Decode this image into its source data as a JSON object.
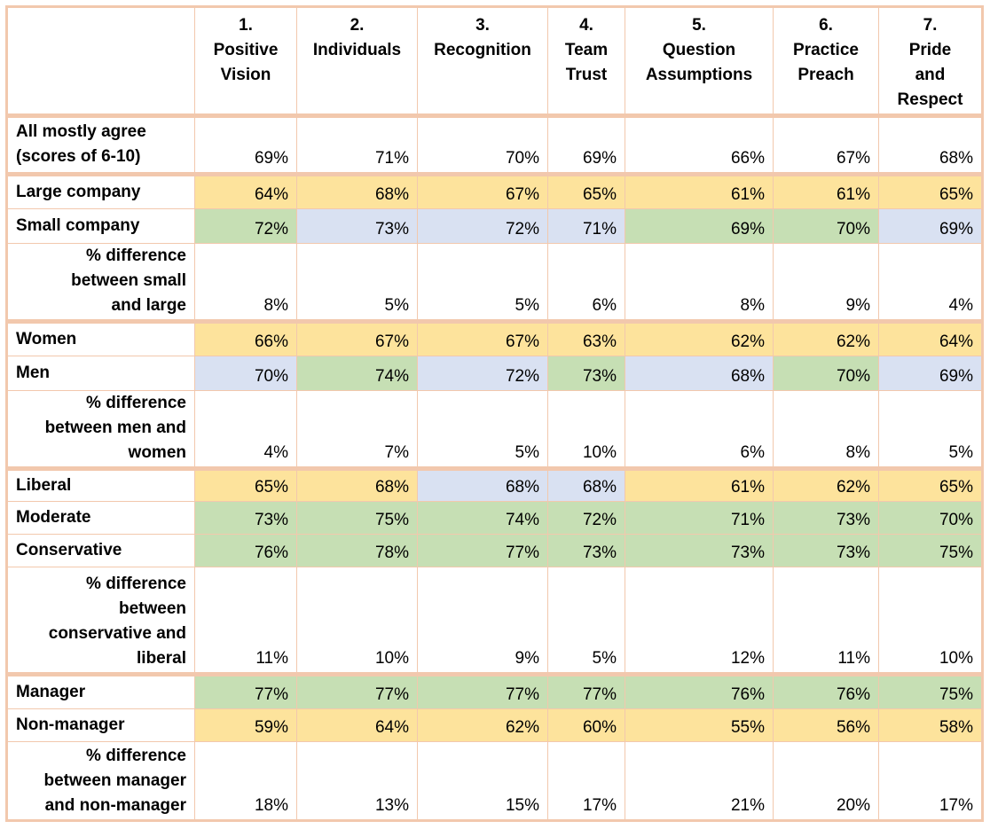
{
  "colors": {
    "yellow": "#fde39c",
    "green": "#c6dfb4",
    "blue": "#d9e1f2",
    "border": "#f2c8ad"
  },
  "header": [
    {
      "num": "1.",
      "name": [
        "Positive",
        "Vision"
      ]
    },
    {
      "num": "2.",
      "name": [
        "Individuals"
      ]
    },
    {
      "num": "3.",
      "name": [
        "Recognition"
      ]
    },
    {
      "num": "4.",
      "name": [
        "Team",
        "Trust"
      ]
    },
    {
      "num": "5.",
      "name": [
        "Question",
        "Assumptions"
      ]
    },
    {
      "num": "6.",
      "name": [
        "Practice",
        "Preach"
      ]
    },
    {
      "num": "7.",
      "name": [
        "Pride",
        "and",
        "Respect"
      ]
    }
  ],
  "rows": [
    {
      "label": [
        "All mostly agree",
        "(scores of 6-10)"
      ],
      "kind": "label",
      "group_end": true,
      "values": [
        "69%",
        "71%",
        "70%",
        "69%",
        "66%",
        "67%",
        "68%"
      ],
      "colors": [
        "white",
        "white",
        "white",
        "white",
        "white",
        "white",
        "white"
      ]
    },
    {
      "label": [
        "Large company"
      ],
      "kind": "label",
      "values": [
        "64%",
        "68%",
        "67%",
        "65%",
        "61%",
        "61%",
        "65%"
      ],
      "colors": [
        "yellow",
        "yellow",
        "yellow",
        "yellow",
        "yellow",
        "yellow",
        "yellow"
      ]
    },
    {
      "label": [
        "Small company"
      ],
      "kind": "label",
      "values": [
        "72%",
        "73%",
        "72%",
        "71%",
        "69%",
        "70%",
        "69%"
      ],
      "colors": [
        "green",
        "blue",
        "blue",
        "blue",
        "green",
        "green",
        "blue"
      ]
    },
    {
      "label": [
        "% difference",
        "between small",
        "and large"
      ],
      "kind": "diff",
      "group_end": true,
      "values": [
        "8%",
        "5%",
        "5%",
        "6%",
        "8%",
        "9%",
        "4%"
      ],
      "colors": [
        "white",
        "white",
        "white",
        "white",
        "white",
        "white",
        "white"
      ]
    },
    {
      "label": [
        "Women"
      ],
      "kind": "label",
      "values": [
        "66%",
        "67%",
        "67%",
        "63%",
        "62%",
        "62%",
        "64%"
      ],
      "colors": [
        "yellow",
        "yellow",
        "yellow",
        "yellow",
        "yellow",
        "yellow",
        "yellow"
      ]
    },
    {
      "label": [
        "Men"
      ],
      "kind": "label",
      "values": [
        "70%",
        "74%",
        "72%",
        "73%",
        "68%",
        "70%",
        "69%"
      ],
      "colors": [
        "blue",
        "green",
        "blue",
        "green",
        "blue",
        "green",
        "blue"
      ]
    },
    {
      "label": [
        "% difference",
        "between men and",
        "women"
      ],
      "kind": "diff",
      "group_end": true,
      "values": [
        "4%",
        "7%",
        "5%",
        "10%",
        "6%",
        "8%",
        "5%"
      ],
      "colors": [
        "white",
        "white",
        "white",
        "white",
        "white",
        "white",
        "white"
      ]
    },
    {
      "label": [
        "Liberal"
      ],
      "kind": "label",
      "values": [
        "65%",
        "68%",
        "68%",
        "68%",
        "61%",
        "62%",
        "65%"
      ],
      "colors": [
        "yellow",
        "yellow",
        "blue",
        "blue",
        "yellow",
        "yellow",
        "yellow"
      ]
    },
    {
      "label": [
        "Moderate"
      ],
      "kind": "label",
      "values": [
        "73%",
        "75%",
        "74%",
        "72%",
        "71%",
        "73%",
        "70%"
      ],
      "colors": [
        "green",
        "green",
        "green",
        "green",
        "green",
        "green",
        "green"
      ]
    },
    {
      "label": [
        "Conservative"
      ],
      "kind": "label",
      "values": [
        "76%",
        "78%",
        "77%",
        "73%",
        "73%",
        "73%",
        "75%"
      ],
      "colors": [
        "green",
        "green",
        "green",
        "green",
        "green",
        "green",
        "green"
      ]
    },
    {
      "label": [
        "% difference",
        "between",
        "conservative and",
        "liberal"
      ],
      "kind": "diff",
      "group_end": true,
      "values": [
        "11%",
        "10%",
        "9%",
        "5%",
        "12%",
        "11%",
        "10%"
      ],
      "colors": [
        "white",
        "white",
        "white",
        "white",
        "white",
        "white",
        "white"
      ]
    },
    {
      "label": [
        "Manager"
      ],
      "kind": "label",
      "values": [
        "77%",
        "77%",
        "77%",
        "77%",
        "76%",
        "76%",
        "75%"
      ],
      "colors": [
        "green",
        "green",
        "green",
        "green",
        "green",
        "green",
        "green"
      ]
    },
    {
      "label": [
        "Non-manager"
      ],
      "kind": "label",
      "values": [
        "59%",
        "64%",
        "62%",
        "60%",
        "55%",
        "56%",
        "58%"
      ],
      "colors": [
        "yellow",
        "yellow",
        "yellow",
        "yellow",
        "yellow",
        "yellow",
        "yellow"
      ]
    },
    {
      "label": [
        "% difference",
        "between manager",
        "and non-manager"
      ],
      "kind": "diff",
      "values": [
        "18%",
        "13%",
        "15%",
        "17%",
        "21%",
        "20%",
        "17%"
      ],
      "colors": [
        "white",
        "white",
        "white",
        "white",
        "white",
        "white",
        "white"
      ]
    }
  ]
}
